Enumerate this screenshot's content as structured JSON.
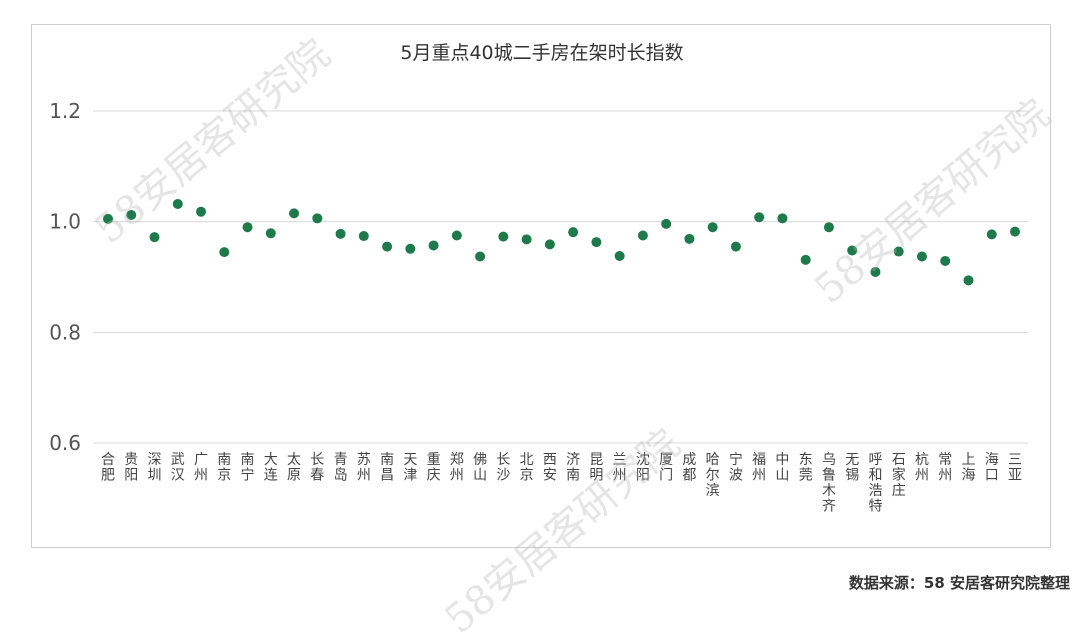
{
  "source_note": "数据来源：58 安居客研究院整理",
  "watermark_text": "58安居客研究院",
  "chart_data": {
    "type": "scatter",
    "title": "5月重点40城二手房在架时长指数",
    "xlabel": "",
    "ylabel": "",
    "ylim": [
      0.6,
      1.2
    ],
    "yticks": [
      "0.6",
      "0.8",
      "1.0",
      "1.2"
    ],
    "grid": true,
    "marker_color": "#1e7a4a",
    "categories": [
      "合肥",
      "贵阳",
      "深圳",
      "武汉",
      "广州",
      "南京",
      "南宁",
      "大连",
      "太原",
      "长春",
      "青岛",
      "苏州",
      "南昌",
      "天津",
      "重庆",
      "郑州",
      "佛山",
      "长沙",
      "北京",
      "西安",
      "济南",
      "昆明",
      "兰州",
      "沈阳",
      "厦门",
      "成都",
      "哈尔滨",
      "宁波",
      "福州",
      "中山",
      "东莞",
      "乌鲁木齐",
      "无锡",
      "呼和浩特",
      "石家庄",
      "杭州",
      "常州",
      "上海",
      "海口",
      "三亚"
    ],
    "values": [
      1.005,
      1.012,
      0.972,
      1.032,
      1.018,
      0.945,
      0.99,
      0.979,
      1.015,
      1.006,
      0.978,
      0.974,
      0.955,
      0.951,
      0.957,
      0.975,
      0.937,
      0.973,
      0.968,
      0.959,
      0.981,
      0.963,
      0.938,
      0.975,
      0.996,
      0.969,
      0.99,
      0.955,
      1.008,
      1.006,
      0.931,
      0.99,
      0.948,
      0.909,
      0.946,
      0.937,
      0.929,
      0.894,
      0.977,
      0.982
    ]
  }
}
